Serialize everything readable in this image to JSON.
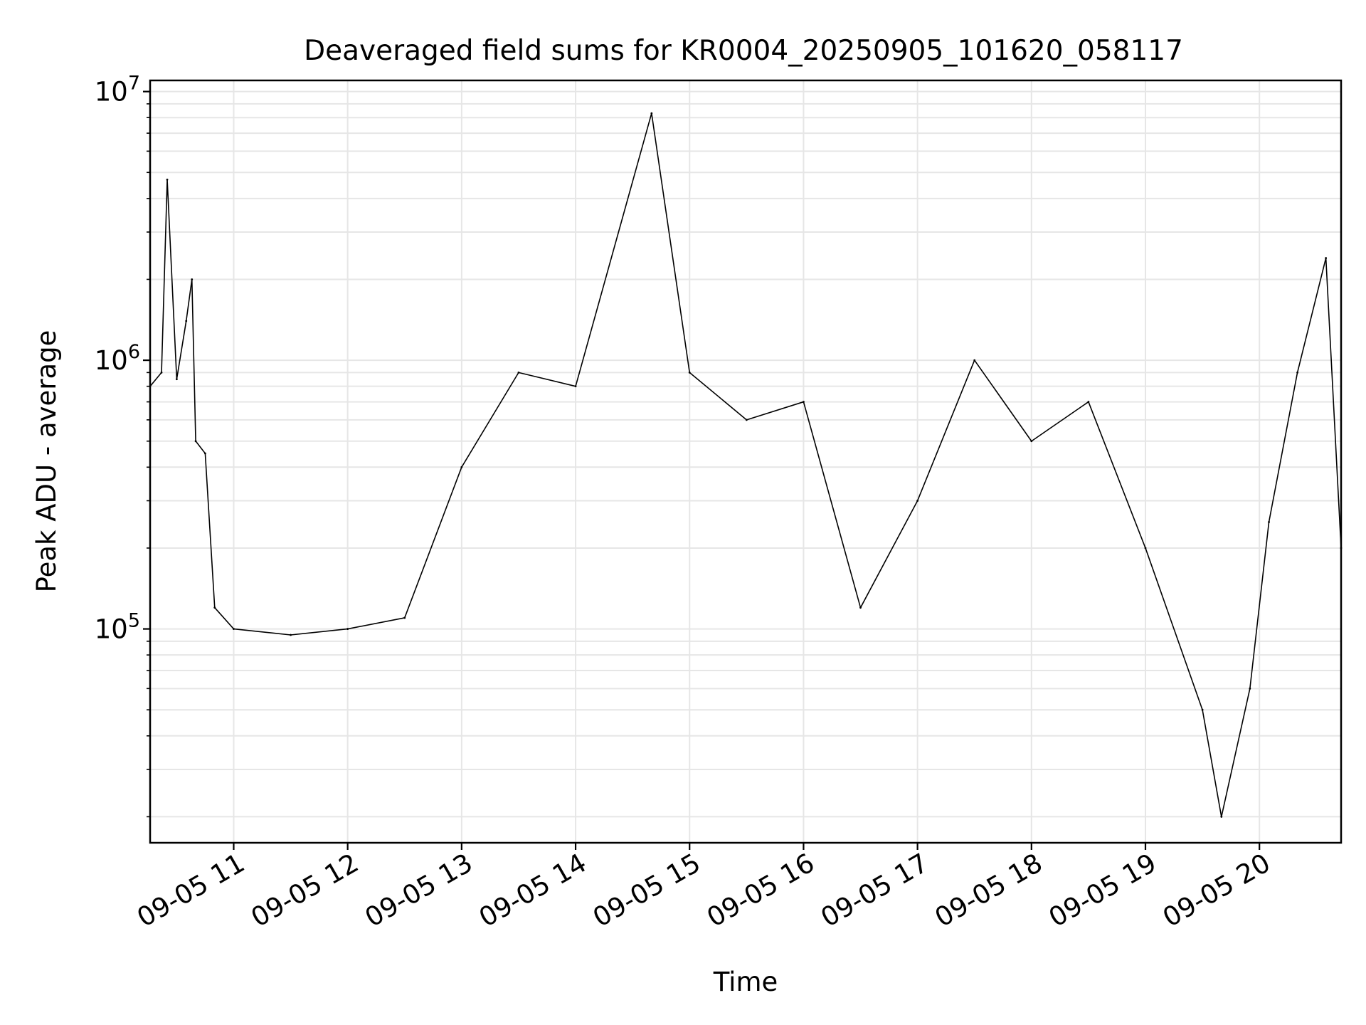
{
  "chart_data": {
    "type": "line",
    "title": "Deaveraged field sums for KR0004_20250905_101620_058117",
    "xlabel": "Time",
    "ylabel": "Peak ADU - average",
    "yscale": "log",
    "ylim": [
      16000,
      11000000
    ],
    "xlim": [
      "2025-09-05 10:16",
      "2025-09-05 20:43"
    ],
    "grid": true,
    "line_color": "#000000",
    "grid_color": "#e6e6e6",
    "xticks": [
      "09-05 11",
      "09-05 12",
      "09-05 13",
      "09-05 14",
      "09-05 15",
      "09-05 16",
      "09-05 17",
      "09-05 18",
      "09-05 19",
      "09-05 20"
    ],
    "yticks": [
      {
        "base": "10",
        "exp": "5",
        "value": 100000
      },
      {
        "base": "10",
        "exp": "6",
        "value": 1000000
      },
      {
        "base": "10",
        "exp": "7",
        "value": 10000000
      }
    ],
    "series": [
      {
        "name": "",
        "points": [
          {
            "t": "2025-09-05 10:16",
            "y": 800000
          },
          {
            "t": "2025-09-05 10:22",
            "y": 900000
          },
          {
            "t": "2025-09-05 10:25",
            "y": 4700000
          },
          {
            "t": "2025-09-05 10:30",
            "y": 850000
          },
          {
            "t": "2025-09-05 10:35",
            "y": 1400000
          },
          {
            "t": "2025-09-05 10:38",
            "y": 2000000
          },
          {
            "t": "2025-09-05 10:40",
            "y": 500000
          },
          {
            "t": "2025-09-05 10:45",
            "y": 450000
          },
          {
            "t": "2025-09-05 10:50",
            "y": 120000
          },
          {
            "t": "2025-09-05 11:00",
            "y": 100000
          },
          {
            "t": "2025-09-05 11:30",
            "y": 95000
          },
          {
            "t": "2025-09-05 12:00",
            "y": 100000
          },
          {
            "t": "2025-09-05 12:30",
            "y": 110000
          },
          {
            "t": "2025-09-05 13:00",
            "y": 400000
          },
          {
            "t": "2025-09-05 13:30",
            "y": 900000
          },
          {
            "t": "2025-09-05 14:00",
            "y": 800000
          },
          {
            "t": "2025-09-05 14:40",
            "y": 8300000
          },
          {
            "t": "2025-09-05 15:00",
            "y": 900000
          },
          {
            "t": "2025-09-05 15:30",
            "y": 600000
          },
          {
            "t": "2025-09-05 16:00",
            "y": 700000
          },
          {
            "t": "2025-09-05 16:30",
            "y": 120000
          },
          {
            "t": "2025-09-05 17:00",
            "y": 300000
          },
          {
            "t": "2025-09-05 17:30",
            "y": 1000000
          },
          {
            "t": "2025-09-05 18:00",
            "y": 500000
          },
          {
            "t": "2025-09-05 18:30",
            "y": 700000
          },
          {
            "t": "2025-09-05 19:00",
            "y": 200000
          },
          {
            "t": "2025-09-05 19:30",
            "y": 50000
          },
          {
            "t": "2025-09-05 19:40",
            "y": 20000
          },
          {
            "t": "2025-09-05 19:55",
            "y": 60000
          },
          {
            "t": "2025-09-05 20:05",
            "y": 250000
          },
          {
            "t": "2025-09-05 20:20",
            "y": 900000
          },
          {
            "t": "2025-09-05 20:35",
            "y": 2400000
          },
          {
            "t": "2025-09-05 20:43",
            "y": 200000
          }
        ]
      }
    ]
  }
}
